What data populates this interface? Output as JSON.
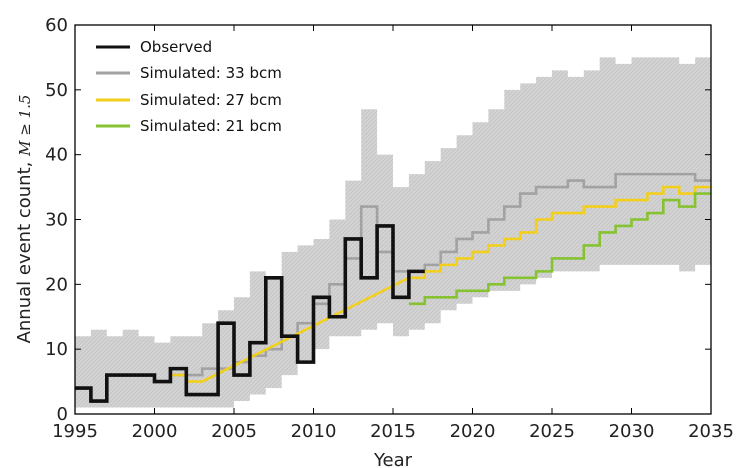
{
  "chart_data": {
    "type": "line",
    "title": "",
    "xlabel": "Year",
    "ylabel_text": "Annual event count, ",
    "ylabel_math": "M ≥ 1.5",
    "xlim": [
      1995,
      2035
    ],
    "ylim": [
      0,
      60
    ],
    "xticks": [
      "1995",
      "2000",
      "2005",
      "2010",
      "2015",
      "2020",
      "2025",
      "2030",
      "2035"
    ],
    "yticks": [
      "0",
      "10",
      "20",
      "30",
      "40",
      "50",
      "60"
    ],
    "grid": false,
    "legend_position": "top-left",
    "band": {
      "years": [
        1995,
        1996,
        1997,
        1998,
        1999,
        2000,
        2001,
        2002,
        2003,
        2004,
        2005,
        2006,
        2007,
        2008,
        2009,
        2010,
        2011,
        2012,
        2013,
        2014,
        2015,
        2016,
        2017,
        2018,
        2019,
        2020,
        2021,
        2022,
        2023,
        2024,
        2025,
        2026,
        2027,
        2028,
        2029,
        2030,
        2031,
        2032,
        2033,
        2034
      ],
      "upper": [
        12,
        13,
        12,
        13,
        12,
        11,
        12,
        12,
        14,
        16,
        18,
        22,
        21,
        25,
        26,
        27,
        30,
        36,
        47,
        40,
        35,
        37,
        39,
        41,
        43,
        45,
        47,
        50,
        51,
        52,
        53,
        52,
        53,
        55,
        54,
        55,
        55,
        55,
        54,
        55
      ],
      "lower": [
        1,
        1,
        1,
        1,
        1,
        1,
        1,
        1,
        1,
        1,
        2,
        3,
        4,
        6,
        8,
        10,
        12,
        12,
        13,
        14,
        12,
        13,
        14,
        16,
        17,
        18,
        19,
        19,
        20,
        21,
        22,
        22,
        22,
        23,
        23,
        23,
        23,
        23,
        22,
        23
      ]
    },
    "series": [
      {
        "name": "Observed",
        "color": "#111111",
        "x": [
          1995,
          1996,
          1997,
          1998,
          1999,
          2000,
          2001,
          2002,
          2003,
          2004,
          2005,
          2006,
          2007,
          2008,
          2009,
          2010,
          2011,
          2012,
          2013,
          2014,
          2015,
          2016
        ],
        "y": [
          4,
          2,
          6,
          6,
          6,
          5,
          7,
          3,
          3,
          14,
          6,
          11,
          21,
          12,
          8,
          18,
          15,
          27,
          21,
          29,
          18,
          22
        ]
      },
      {
        "name": "Simulated: 33 bcm",
        "color": "#a2a2a2",
        "x": [
          2001,
          2002,
          2003,
          2004,
          2005,
          2006,
          2007,
          2008,
          2009,
          2010,
          2011,
          2012,
          2013,
          2014,
          2015,
          2016,
          2017,
          2018,
          2019,
          2020,
          2021,
          2022,
          2023,
          2024,
          2025,
          2026,
          2027,
          2028,
          2029,
          2030,
          2031,
          2032,
          2033,
          2034
        ],
        "y": [
          6,
          6,
          7,
          7,
          8,
          9,
          10,
          12,
          14,
          17,
          20,
          24,
          32,
          25,
          22,
          22,
          23,
          25,
          27,
          28,
          30,
          32,
          34,
          35,
          35,
          36,
          35,
          35,
          37,
          37,
          37,
          37,
          37,
          36
        ]
      },
      {
        "name": "Simulated: 27 bcm",
        "color": "#f2cf1d",
        "x": [
          2001,
          2002,
          2016,
          2017,
          2018,
          2019,
          2020,
          2021,
          2022,
          2023,
          2024,
          2025,
          2026,
          2027,
          2028,
          2029,
          2030,
          2031,
          2032,
          2033,
          2034
        ],
        "y": [
          6,
          5,
          21,
          22,
          23,
          24,
          25,
          26,
          27,
          28,
          30,
          31,
          31,
          32,
          32,
          33,
          33,
          34,
          35,
          34,
          35
        ]
      },
      {
        "name": "Simulated: 21 bcm",
        "color": "#86c232",
        "x": [
          2016,
          2017,
          2018,
          2019,
          2020,
          2021,
          2022,
          2023,
          2024,
          2025,
          2026,
          2027,
          2028,
          2029,
          2030,
          2031,
          2032,
          2033,
          2034
        ],
        "y": [
          17,
          18,
          18,
          19,
          19,
          20,
          21,
          21,
          22,
          24,
          24,
          26,
          28,
          29,
          30,
          31,
          33,
          32,
          34
        ]
      }
    ]
  }
}
